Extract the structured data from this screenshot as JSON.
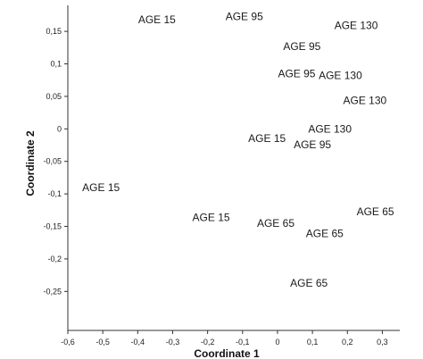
{
  "chart_data": {
    "type": "scatter",
    "title": "",
    "xlabel": "Coordinate 1",
    "ylabel": "Coordinate 2",
    "xlim": [
      -0.6,
      0.35
    ],
    "ylim": [
      -0.31,
      0.19
    ],
    "x_ticks": [
      -0.6,
      -0.5,
      -0.4,
      -0.3,
      -0.2,
      -0.1,
      0,
      0.1,
      0.2,
      0.3
    ],
    "x_tick_labels": [
      "-0,6",
      "-0,5",
      "-0,4",
      "-0,3",
      "-0,2",
      "-0,1",
      "0",
      "0,1",
      "0,2",
      "0,3"
    ],
    "y_ticks": [
      0.15,
      0.1,
      0.05,
      0,
      -0.05,
      -0.1,
      -0.15,
      -0.2,
      -0.25
    ],
    "y_tick_labels": [
      "0,15",
      "0,1",
      "0,05",
      "0",
      "-0,05",
      "-0,1",
      "-0,15",
      "-0,2",
      "-0,25"
    ],
    "grid": false,
    "legend": "none",
    "points": [
      {
        "label": "AGE 15",
        "x": -0.345,
        "y": 0.168
      },
      {
        "label": "AGE 95",
        "x": -0.095,
        "y": 0.173
      },
      {
        "label": "AGE 130",
        "x": 0.225,
        "y": 0.159
      },
      {
        "label": "AGE 95",
        "x": 0.07,
        "y": 0.127
      },
      {
        "label": "AGE 95",
        "x": 0.055,
        "y": 0.085
      },
      {
        "label": "AGE 130",
        "x": 0.18,
        "y": 0.082
      },
      {
        "label": "AGE 130",
        "x": 0.25,
        "y": 0.044
      },
      {
        "label": "AGE 130",
        "x": 0.15,
        "y": 0.0
      },
      {
        "label": "AGE 15",
        "x": -0.03,
        "y": -0.015
      },
      {
        "label": "AGE 95",
        "x": 0.1,
        "y": -0.024
      },
      {
        "label": "AGE 15",
        "x": -0.505,
        "y": -0.09
      },
      {
        "label": "AGE 15",
        "x": -0.19,
        "y": -0.136
      },
      {
        "label": "AGE 65",
        "x": 0.28,
        "y": -0.127
      },
      {
        "label": "AGE 65",
        "x": -0.005,
        "y": -0.145
      },
      {
        "label": "AGE 65",
        "x": 0.135,
        "y": -0.161
      },
      {
        "label": "AGE 65",
        "x": 0.09,
        "y": -0.237
      }
    ]
  }
}
